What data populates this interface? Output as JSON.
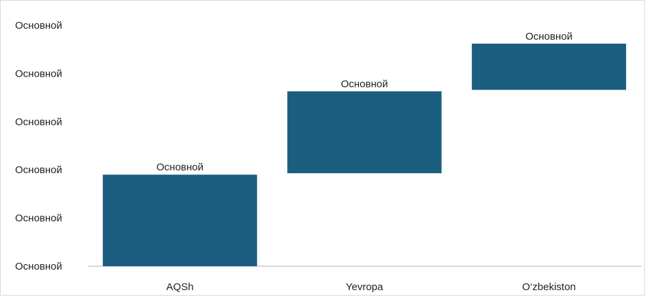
{
  "chart_data": {
    "type": "bar",
    "subtype": "waterfall",
    "categories": [
      "AQSh",
      "Yevropa",
      "O‘zbekiston"
    ],
    "bars": [
      {
        "category": "AQSh",
        "start": 0,
        "end": 1.9,
        "label": "Основной"
      },
      {
        "category": "Yevropa",
        "start": 1.93,
        "end": 3.63,
        "label": "Основной"
      },
      {
        "category": "O‘zbekiston",
        "start": 3.66,
        "end": 4.62,
        "label": "Основной"
      }
    ],
    "y_ticks": [
      0,
      1,
      2,
      3,
      4,
      5
    ],
    "y_tick_labels": [
      "Основной",
      "Основной",
      "Основной",
      "Основной",
      "Основной",
      "Основной"
    ],
    "ylim": [
      0,
      5
    ],
    "grid": false,
    "bar_color": "#1b5e7f",
    "axis_color": "#cccccc"
  }
}
